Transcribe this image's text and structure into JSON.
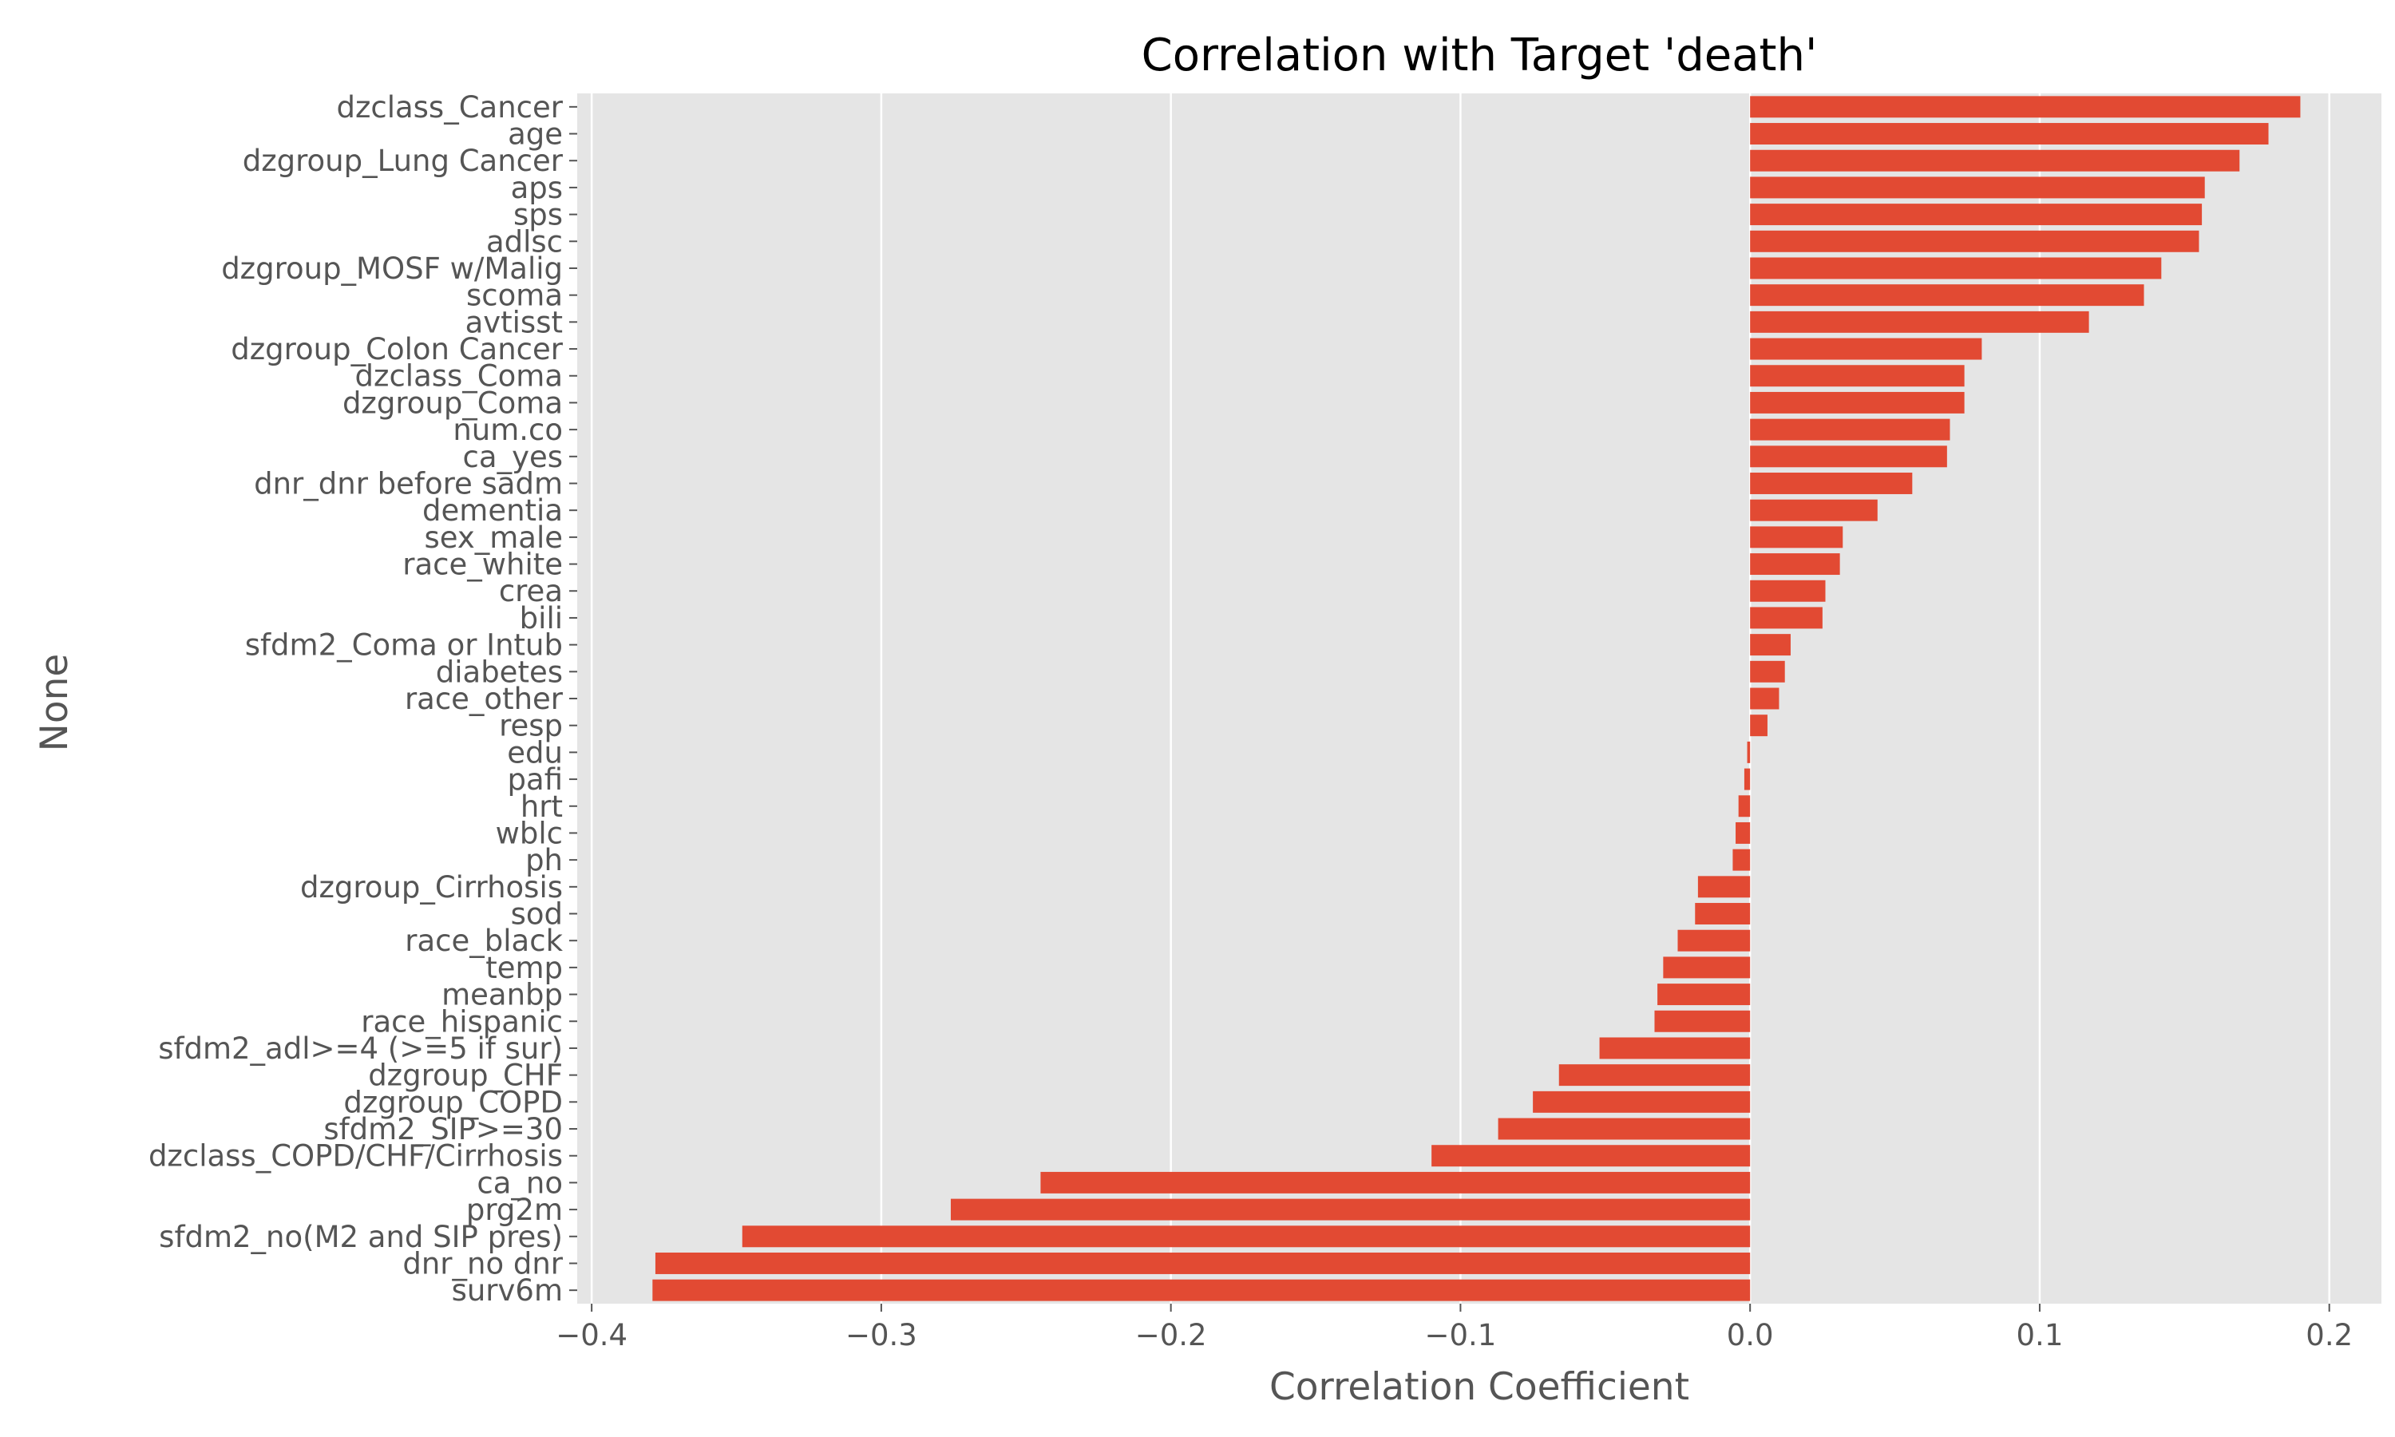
{
  "chart_data": {
    "type": "bar",
    "orientation": "horizontal",
    "title": "Correlation with Target 'death'",
    "xlabel": "Correlation Coefficient",
    "ylabel": "None",
    "xlim": [
      -0.405,
      0.218
    ],
    "xticks": [
      {
        "value": -0.4,
        "label": "−0.4"
      },
      {
        "value": -0.3,
        "label": "−0.3"
      },
      {
        "value": -0.2,
        "label": "−0.2"
      },
      {
        "value": -0.1,
        "label": "−0.1"
      },
      {
        "value": 0.0,
        "label": "0.0"
      },
      {
        "value": 0.1,
        "label": "0.1"
      },
      {
        "value": 0.2,
        "label": "0.2"
      }
    ],
    "grid": true,
    "bar_color": "#E24A33",
    "background_color": "#E5E5E5",
    "categories": [
      "dzclass_Cancer",
      "age",
      "dzgroup_Lung Cancer",
      "aps",
      "sps",
      "adlsc",
      "dzgroup_MOSF w/Malig",
      "scoma",
      "avtisst",
      "dzgroup_Colon Cancer",
      "dzclass_Coma",
      "dzgroup_Coma",
      "num.co",
      "ca_yes",
      "dnr_dnr before sadm",
      "dementia",
      "sex_male",
      "race_white",
      "crea",
      "bili",
      "sfdm2_Coma or Intub",
      "diabetes",
      "race_other",
      "resp",
      "edu",
      "pafi",
      "hrt",
      "wblc",
      "ph",
      "dzgroup_Cirrhosis",
      "sod",
      "race_black",
      "temp",
      "meanbp",
      "race_hispanic",
      "sfdm2_adl>=4 (>=5 if sur)",
      "dzgroup_CHF",
      "dzgroup_COPD",
      "sfdm2_SIP>=30",
      "dzclass_COPD/CHF/Cirrhosis",
      "ca_no",
      "prg2m",
      "sfdm2_no(M2 and SIP pres)",
      "dnr_no dnr",
      "surv6m"
    ],
    "values": [
      0.19,
      0.179,
      0.169,
      0.157,
      0.156,
      0.155,
      0.142,
      0.136,
      0.117,
      0.08,
      0.074,
      0.074,
      0.069,
      0.068,
      0.056,
      0.044,
      0.032,
      0.031,
      0.026,
      0.025,
      0.014,
      0.012,
      0.01,
      0.006,
      -0.001,
      -0.002,
      -0.004,
      -0.005,
      -0.006,
      -0.018,
      -0.019,
      -0.025,
      -0.03,
      -0.032,
      -0.033,
      -0.052,
      -0.066,
      -0.075,
      -0.087,
      -0.11,
      -0.245,
      -0.276,
      -0.348,
      -0.378,
      -0.379
    ]
  }
}
